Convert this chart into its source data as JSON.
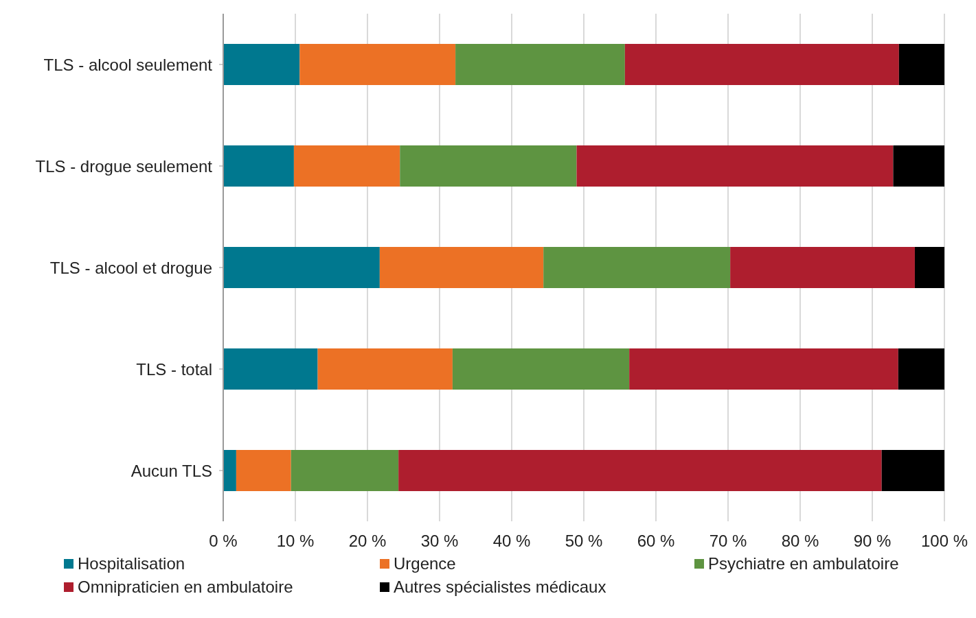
{
  "chart_data": {
    "type": "bar",
    "orientation": "horizontal",
    "stacked": true,
    "categories": [
      "TLS - alcool seulement",
      "TLS - drogue seulement",
      "TLS - alcool et drogue",
      "TLS - total",
      "Aucun TLS"
    ],
    "series": [
      {
        "name": "Hospitalisation",
        "color": "#00788f",
        "values": [
          10.6,
          9.8,
          21.7,
          13.1,
          1.8
        ]
      },
      {
        "name": "Urgence",
        "color": "#ec7125",
        "values": [
          21.6,
          14.7,
          22.7,
          18.7,
          7.6
        ]
      },
      {
        "name": "Psychiatre en ambulatoire",
        "color": "#5e9441",
        "values": [
          23.5,
          24.5,
          25.9,
          24.5,
          14.9
        ]
      },
      {
        "name": "Omnipraticien en ambulatoire",
        "color": "#ae1e2e",
        "values": [
          38.0,
          43.9,
          25.6,
          37.3,
          67.0
        ]
      },
      {
        "name": "Autres spécialistes médicaux",
        "color": "#000000",
        "values": [
          6.3,
          7.1,
          4.1,
          6.4,
          8.7
        ]
      }
    ],
    "xlim": [
      0,
      100
    ],
    "xticks": [
      {
        "value": 0,
        "label": "0 %"
      },
      {
        "value": 10,
        "label": "10 %"
      },
      {
        "value": 20,
        "label": "20 %"
      },
      {
        "value": 30,
        "label": "30 %"
      },
      {
        "value": 40,
        "label": "40 %"
      },
      {
        "value": 50,
        "label": "50 %"
      },
      {
        "value": 60,
        "label": "60 %"
      },
      {
        "value": 70,
        "label": "70 %"
      },
      {
        "value": 80,
        "label": "80 %"
      },
      {
        "value": 90,
        "label": "90 %"
      },
      {
        "value": 100,
        "label": "100 %"
      }
    ],
    "grid": "x",
    "legend": "bottom"
  }
}
